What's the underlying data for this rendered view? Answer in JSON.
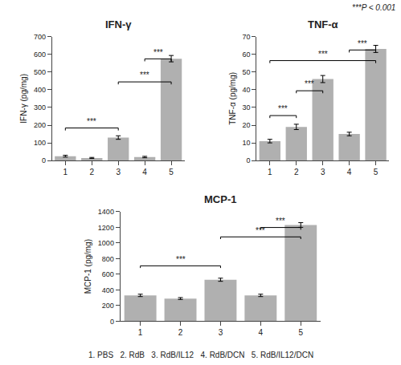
{
  "chart_data": [
    {
      "type": "bar",
      "title": "IFN-γ",
      "ylabel": "IFN-γ (pg/mg)",
      "categories": [
        "1",
        "2",
        "3",
        "4",
        "5"
      ],
      "values": [
        25,
        15,
        130,
        20,
        575
      ],
      "errors": [
        5,
        3,
        10,
        4,
        18
      ],
      "color": "#b0b0b0",
      "ylim": [
        0,
        700
      ],
      "yticks": [
        0,
        100,
        200,
        300,
        400,
        500,
        600,
        700
      ],
      "grid": false,
      "brackets": [
        {
          "from": "1",
          "to": "3",
          "y": 170,
          "text": "***"
        },
        {
          "from": "3",
          "to": "5",
          "y": 430,
          "text": "***"
        },
        {
          "from": "4",
          "to": "5",
          "y": 560,
          "text": "***"
        }
      ]
    },
    {
      "type": "bar",
      "title": "TNF-α",
      "ylabel": "TNF-α (pg/mg)",
      "categories": [
        "1",
        "2",
        "3",
        "4",
        "5"
      ],
      "values": [
        11,
        19,
        46,
        15,
        63
      ],
      "errors": [
        1,
        1.5,
        2,
        1,
        2
      ],
      "color": "#b0b0b0",
      "ylim": [
        0,
        70
      ],
      "yticks": [
        0,
        10,
        20,
        30,
        40,
        50,
        60,
        70
      ],
      "grid": false,
      "brackets": [
        {
          "from": "1",
          "to": "2",
          "y": 24,
          "text": "***"
        },
        {
          "from": "2",
          "to": "3",
          "y": 38,
          "text": "***"
        },
        {
          "from": "1",
          "to": "5",
          "y": 55,
          "text": "***"
        },
        {
          "from": "4",
          "to": "5",
          "y": 61,
          "text": "***"
        }
      ]
    },
    {
      "type": "bar",
      "title": "MCP-1",
      "ylabel": "MCP-1 (pg/mg)",
      "categories": [
        "1",
        "2",
        "3",
        "4",
        "5"
      ],
      "values": [
        330,
        290,
        530,
        330,
        1230
      ],
      "errors": [
        15,
        12,
        20,
        15,
        30
      ],
      "color": "#b0b0b0",
      "ylim": [
        0,
        1400
      ],
      "yticks": [
        0,
        200,
        400,
        600,
        800,
        1000,
        1200,
        1400
      ],
      "grid": false,
      "brackets": [
        {
          "from": "1",
          "to": "3",
          "y": 680,
          "text": "***"
        },
        {
          "from": "3",
          "to": "5",
          "y": 1050,
          "text": "***"
        },
        {
          "from": "4",
          "to": "5",
          "y": 1170,
          "text": "***"
        }
      ]
    }
  ],
  "annotations": [
    "***P < 0.001",
    "1. PBS   2. RdB   3. RdB/IL12   4. RdB/DCN   5. RdB/IL12/DCN"
  ]
}
